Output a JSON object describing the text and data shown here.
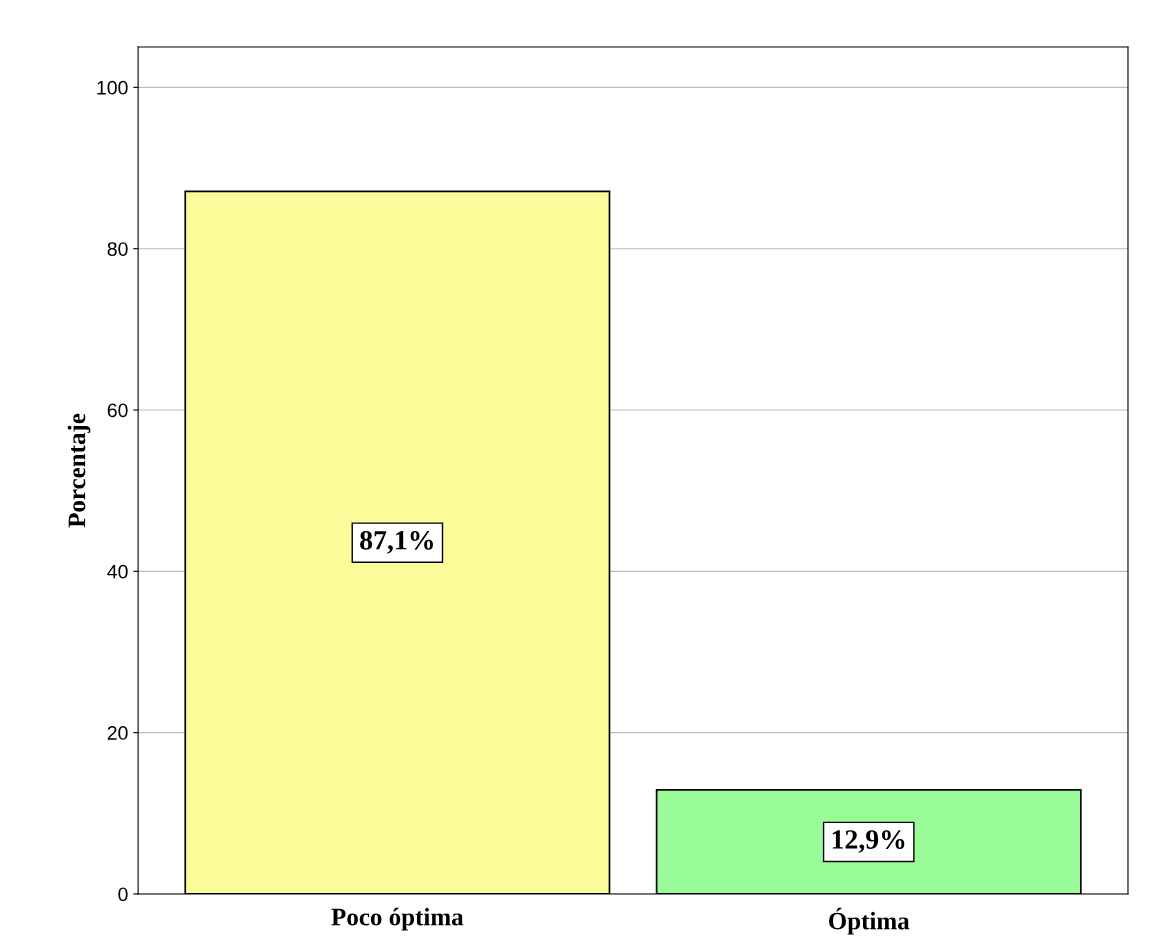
{
  "chart_data": {
    "type": "bar",
    "ylabel": "Porcentaje",
    "categories": [
      "Poco óptima",
      "Óptima"
    ],
    "values": [
      87.1,
      12.9
    ],
    "value_labels": [
      "87,1%",
      "12,9%"
    ],
    "colors": [
      "#fcfc9a",
      "#99fc99"
    ],
    "ylim": [
      0,
      105
    ],
    "yticks": [
      0,
      20,
      40,
      60,
      80,
      100
    ],
    "grid": "y"
  }
}
